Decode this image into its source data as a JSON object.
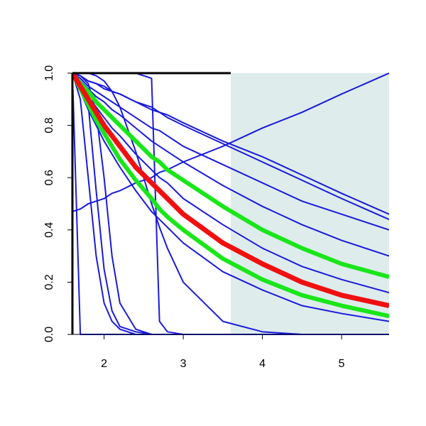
{
  "chart_data": {
    "type": "line",
    "x": [
      1.6,
      1.7,
      1.8,
      1.9,
      2.0,
      2.1,
      2.2,
      2.4,
      2.6,
      2.7,
      2.8,
      3.0,
      3.5,
      4.0,
      4.5,
      5.0,
      5.6
    ],
    "xlim": [
      1.6,
      5.6
    ],
    "ylim": [
      0,
      1
    ],
    "xticks": [
      2,
      3,
      4,
      5
    ],
    "yticks": [
      {
        "value": 0,
        "label": "0.0"
      },
      0.2,
      0.4,
      0.6,
      0.8,
      {
        "value": 1,
        "label": "1.0"
      }
    ],
    "shaded_region": {
      "x": [
        3.6,
        5.6
      ],
      "color": "#deecec"
    },
    "series": [
      {
        "color": "#1a1adc",
        "width": 2,
        "values": [
          1,
          0.99,
          0.97,
          0.96,
          0.95,
          0.93,
          0.92,
          0.89,
          0.87,
          0.85,
          0.84,
          0.81,
          0.74,
          0.68,
          0.61,
          0.54,
          0.46
        ]
      },
      {
        "color": "#1a1adc",
        "width": 2,
        "values": [
          1,
          0.99,
          0.97,
          0.96,
          0.94,
          0.93,
          0.92,
          0.89,
          0.86,
          0.85,
          0.83,
          0.8,
          0.73,
          0.66,
          0.59,
          0.52,
          0.44
        ]
      },
      {
        "color": "#1a1adc",
        "width": 2,
        "values": [
          1,
          0.98,
          0.95,
          0.93,
          0.91,
          0.89,
          0.87,
          0.83,
          0.79,
          0.78,
          0.76,
          0.72,
          0.65,
          0.58,
          0.51,
          0.46,
          0.4
        ]
      },
      {
        "color": "#1a1adc",
        "width": 2,
        "values": [
          1,
          0.97,
          0.94,
          0.91,
          0.89,
          0.86,
          0.84,
          0.79,
          0.74,
          0.72,
          0.7,
          0.66,
          0.57,
          0.49,
          0.42,
          0.36,
          0.3
        ]
      },
      {
        "color": "#1a1adc",
        "width": 2,
        "values": [
          1,
          0.95,
          0.91,
          0.87,
          0.83,
          0.79,
          0.76,
          0.69,
          0.63,
          0.6,
          0.58,
          0.52,
          0.42,
          0.33,
          0.26,
          0.21,
          0.16
        ]
      },
      {
        "color": "#1a1adc",
        "width": 2,
        "values": [
          1,
          0.93,
          0.86,
          0.8,
          0.74,
          0.69,
          0.64,
          0.55,
          0.47,
          0.44,
          0.41,
          0.35,
          0.24,
          0.17,
          0.11,
          0.08,
          0.05
        ]
      },
      {
        "color": "#1a1adc",
        "width": 2,
        "values": [
          1,
          1,
          1,
          0.99,
          0.97,
          0.93,
          0.87,
          0.7,
          0.5,
          0.41,
          0.33,
          0.2,
          0.05,
          0.01,
          0,
          0,
          0
        ]
      },
      {
        "color": "#1a1adc",
        "width": 2,
        "values": [
          1,
          1,
          1,
          1,
          1,
          1,
          1,
          1,
          0.98,
          0.05,
          0.01,
          0,
          0,
          0,
          0,
          0,
          0
        ]
      },
      {
        "color": "#1a1adc",
        "width": 2,
        "values": [
          1,
          0.97,
          0.88,
          0.55,
          0.25,
          0.09,
          0.03,
          0.01,
          0,
          0,
          0,
          0,
          0,
          0,
          0,
          0,
          0
        ]
      },
      {
        "color": "#1a1adc",
        "width": 2,
        "values": [
          1,
          0.99,
          0.96,
          0.85,
          0.6,
          0.3,
          0.12,
          0.02,
          0,
          0,
          0,
          0,
          0,
          0,
          0,
          0,
          0
        ]
      },
      {
        "color": "#1a1adc",
        "width": 2,
        "values": [
          1,
          0.9,
          0.6,
          0.3,
          0.12,
          0.05,
          0.02,
          0,
          0,
          0,
          0,
          0,
          0,
          0,
          0,
          0,
          0
        ]
      },
      {
        "color": "#1a1adc",
        "width": 2,
        "values": [
          1,
          0,
          0,
          0,
          0,
          0,
          0,
          0,
          0,
          0,
          0,
          0,
          0,
          0,
          0,
          0,
          0
        ]
      },
      {
        "color": "#1a1adc",
        "width": 2,
        "values": [
          0.47,
          0.48,
          0.5,
          0.51,
          0.52,
          0.54,
          0.55,
          0.58,
          0.6,
          0.62,
          0.63,
          0.66,
          0.72,
          0.79,
          0.85,
          0.92,
          1.0
        ]
      },
      {
        "color": "#19e619",
        "width": 6,
        "values": [
          1,
          0.96,
          0.93,
          0.89,
          0.86,
          0.83,
          0.8,
          0.74,
          0.68,
          0.66,
          0.63,
          0.59,
          0.49,
          0.4,
          0.33,
          0.27,
          0.22
        ]
      },
      {
        "color": "#19e619",
        "width": 6,
        "values": [
          1,
          0.94,
          0.88,
          0.82,
          0.77,
          0.72,
          0.67,
          0.59,
          0.52,
          0.48,
          0.45,
          0.4,
          0.29,
          0.21,
          0.15,
          0.11,
          0.07
        ]
      },
      {
        "color": "#f01010",
        "width": 7,
        "values": [
          1,
          0.95,
          0.9,
          0.85,
          0.8,
          0.76,
          0.72,
          0.64,
          0.58,
          0.55,
          0.52,
          0.46,
          0.35,
          0.27,
          0.2,
          0.15,
          0.11
        ]
      }
    ]
  }
}
